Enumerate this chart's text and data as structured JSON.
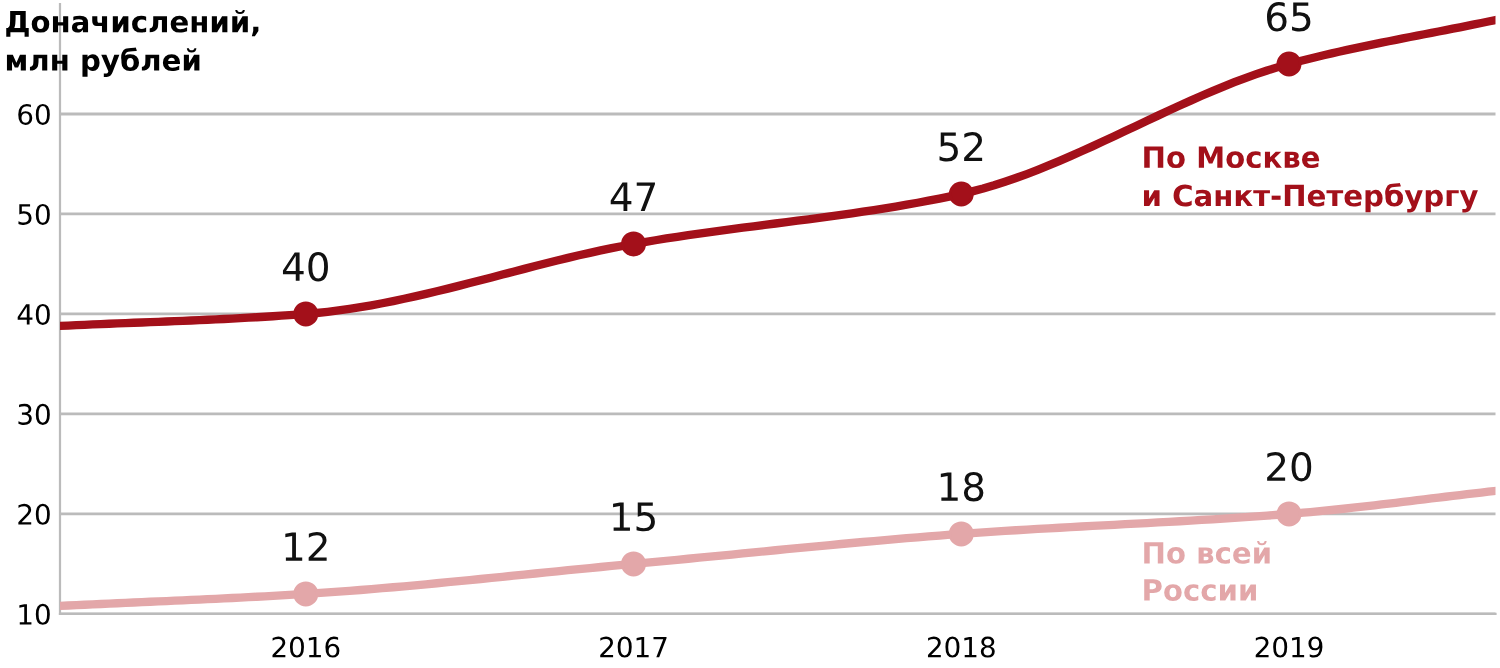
{
  "chart_data": {
    "type": "line",
    "ylabel": "Доначислений,\nмлн рублей",
    "xlim": [
      2015.25,
      2019.63
    ],
    "xticks": [
      2016,
      2017,
      2018,
      2019
    ],
    "ylim": [
      10,
      71
    ],
    "yticks": [
      10,
      20,
      30,
      40,
      50,
      60
    ],
    "grid": "y",
    "marker": "circle",
    "line_style": "solid",
    "legend": false,
    "series": [
      {
        "name": "По Москве\nи Санкт-Петербургу",
        "color": "#a3101a",
        "x": [
          2015.25,
          2016,
          2017,
          2018,
          2019,
          2019.63
        ],
        "values": [
          38.8,
          40,
          47,
          52,
          65,
          69.4
        ],
        "value_labels": [
          null,
          "40",
          "47",
          "52",
          "65",
          null
        ]
      },
      {
        "name": "По всей\nРоссии",
        "color": "#e3a7a9",
        "x": [
          2015.25,
          2016,
          2017,
          2018,
          2019,
          2019.63
        ],
        "values": [
          10.8,
          12,
          15,
          18,
          20,
          22.3
        ],
        "value_labels": [
          null,
          "12",
          "15",
          "18",
          "20",
          null
        ]
      }
    ]
  }
}
